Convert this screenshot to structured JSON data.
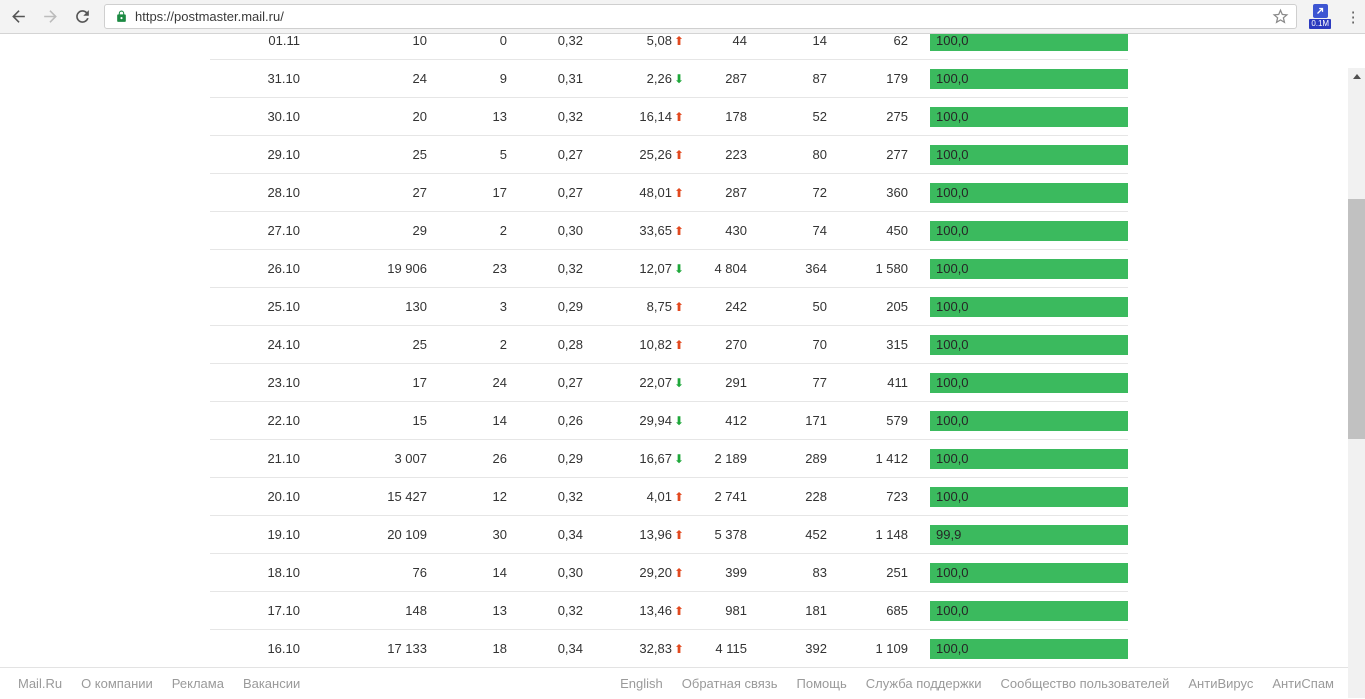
{
  "browser": {
    "url": "https://postmaster.mail.ru/",
    "extension_badge_label": "0.1M"
  },
  "icons": {
    "trend_up_arrow": "⬆",
    "trend_down_arrow": "⬇",
    "menu_dots": "⋮"
  },
  "colors": {
    "bar_green": "#3bba5e",
    "trend_up_red": "#e2491f",
    "trend_down_green": "#1ea73a",
    "lock_green": "#1c8a43"
  },
  "table": {
    "rows": [
      {
        "date": "01.11",
        "v1": "10",
        "v2": "0",
        "v3": "0,32",
        "delta": "5,08",
        "trend": "up",
        "v4": "44",
        "v5": "14",
        "v6": "62",
        "rate": "100,0",
        "rate_pct": 100
      },
      {
        "date": "31.10",
        "v1": "24",
        "v2": "9",
        "v3": "0,31",
        "delta": "2,26",
        "trend": "down",
        "v4": "287",
        "v5": "87",
        "v6": "179",
        "rate": "100,0",
        "rate_pct": 100
      },
      {
        "date": "30.10",
        "v1": "20",
        "v2": "13",
        "v3": "0,32",
        "delta": "16,14",
        "trend": "up",
        "v4": "178",
        "v5": "52",
        "v6": "275",
        "rate": "100,0",
        "rate_pct": 100
      },
      {
        "date": "29.10",
        "v1": "25",
        "v2": "5",
        "v3": "0,27",
        "delta": "25,26",
        "trend": "up",
        "v4": "223",
        "v5": "80",
        "v6": "277",
        "rate": "100,0",
        "rate_pct": 100
      },
      {
        "date": "28.10",
        "v1": "27",
        "v2": "17",
        "v3": "0,27",
        "delta": "48,01",
        "trend": "up",
        "v4": "287",
        "v5": "72",
        "v6": "360",
        "rate": "100,0",
        "rate_pct": 100
      },
      {
        "date": "27.10",
        "v1": "29",
        "v2": "2",
        "v3": "0,30",
        "delta": "33,65",
        "trend": "up",
        "v4": "430",
        "v5": "74",
        "v6": "450",
        "rate": "100,0",
        "rate_pct": 100
      },
      {
        "date": "26.10",
        "v1": "19 906",
        "v2": "23",
        "v3": "0,32",
        "delta": "12,07",
        "trend": "down",
        "v4": "4 804",
        "v5": "364",
        "v6": "1 580",
        "rate": "100,0",
        "rate_pct": 100
      },
      {
        "date": "25.10",
        "v1": "130",
        "v2": "3",
        "v3": "0,29",
        "delta": "8,75",
        "trend": "up",
        "v4": "242",
        "v5": "50",
        "v6": "205",
        "rate": "100,0",
        "rate_pct": 100
      },
      {
        "date": "24.10",
        "v1": "25",
        "v2": "2",
        "v3": "0,28",
        "delta": "10,82",
        "trend": "up",
        "v4": "270",
        "v5": "70",
        "v6": "315",
        "rate": "100,0",
        "rate_pct": 100
      },
      {
        "date": "23.10",
        "v1": "17",
        "v2": "24",
        "v3": "0,27",
        "delta": "22,07",
        "trend": "down",
        "v4": "291",
        "v5": "77",
        "v6": "411",
        "rate": "100,0",
        "rate_pct": 100
      },
      {
        "date": "22.10",
        "v1": "15",
        "v2": "14",
        "v3": "0,26",
        "delta": "29,94",
        "trend": "down",
        "v4": "412",
        "v5": "171",
        "v6": "579",
        "rate": "100,0",
        "rate_pct": 100
      },
      {
        "date": "21.10",
        "v1": "3 007",
        "v2": "26",
        "v3": "0,29",
        "delta": "16,67",
        "trend": "down",
        "v4": "2 189",
        "v5": "289",
        "v6": "1 412",
        "rate": "100,0",
        "rate_pct": 100
      },
      {
        "date": "20.10",
        "v1": "15 427",
        "v2": "12",
        "v3": "0,32",
        "delta": "4,01",
        "trend": "up",
        "v4": "2 741",
        "v5": "228",
        "v6": "723",
        "rate": "100,0",
        "rate_pct": 100
      },
      {
        "date": "19.10",
        "v1": "20 109",
        "v2": "30",
        "v3": "0,34",
        "delta": "13,96",
        "trend": "up",
        "v4": "5 378",
        "v5": "452",
        "v6": "1 148",
        "rate": "99,9",
        "rate_pct": 99.9
      },
      {
        "date": "18.10",
        "v1": "76",
        "v2": "14",
        "v3": "0,30",
        "delta": "29,20",
        "trend": "up",
        "v4": "399",
        "v5": "83",
        "v6": "251",
        "rate": "100,0",
        "rate_pct": 100
      },
      {
        "date": "17.10",
        "v1": "148",
        "v2": "13",
        "v3": "0,32",
        "delta": "13,46",
        "trend": "up",
        "v4": "981",
        "v5": "181",
        "v6": "685",
        "rate": "100,0",
        "rate_pct": 100
      },
      {
        "date": "16.10",
        "v1": "17 133",
        "v2": "18",
        "v3": "0,34",
        "delta": "32,83",
        "trend": "up",
        "v4": "4 115",
        "v5": "392",
        "v6": "1 109",
        "rate": "100,0",
        "rate_pct": 100
      }
    ]
  },
  "footer": {
    "left_links": [
      "Mail.Ru",
      "О компании",
      "Реклама",
      "Вакансии"
    ],
    "right_links": [
      "English",
      "Обратная связь",
      "Помощь",
      "Служба поддержки",
      "Сообщество пользователей",
      "АнтиВирус",
      "АнтиСпам"
    ]
  }
}
